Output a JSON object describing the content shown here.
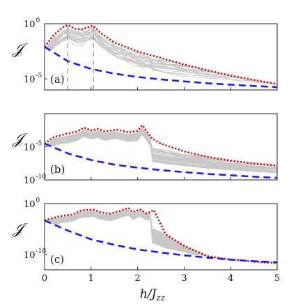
{
  "chart_data": [
    {
      "panel_label": "(a)",
      "type": "line",
      "ylabel": "𝒥",
      "yscale": "log",
      "ylim": [
        1e-06,
        1
      ],
      "xlim": [
        0,
        5
      ],
      "yticks": [
        {
          "exp": "0",
          "value": 1
        },
        {
          "exp": "-5",
          "value": 1e-05
        }
      ],
      "vertical_markers": [
        0.5,
        1.05
      ],
      "series": [
        {
          "role": "upper envelope",
          "color": "#e00000",
          "style": "dotted",
          "x": [
            0,
            0.2,
            0.4,
            0.5,
            0.65,
            0.8,
            1.0,
            1.05,
            1.2,
            1.5,
            2.0,
            2.5,
            3.0,
            3.5,
            4.0,
            4.5,
            5.0
          ],
          "y": [
            0.008,
            0.1,
            0.5,
            0.75,
            0.35,
            0.3,
            0.6,
            0.65,
            0.15,
            0.02,
            0.003,
            0.0008,
            0.0002,
            6e-05,
            2e-05,
            8e-06,
            3.5e-06
          ]
        },
        {
          "role": "lower bound",
          "color": "#1a1aff",
          "style": "dashed",
          "x": [
            0,
            0.5,
            1.0,
            1.5,
            2.0,
            2.5,
            3.0,
            3.5,
            4.0,
            4.5,
            5.0
          ],
          "y": [
            0.008,
            0.0004,
            8e-05,
            3e-05,
            1.5e-05,
            9e-06,
            6e-06,
            4e-06,
            3e-06,
            2.3e-06,
            1.8e-06
          ]
        }
      ]
    },
    {
      "panel_label": "(b)",
      "type": "line",
      "ylabel": "𝒥",
      "yscale": "log",
      "ylim": [
        1e-10,
        1
      ],
      "xlim": [
        0,
        5
      ],
      "yticks": [
        {
          "exp": "-5",
          "value": 1e-05
        },
        {
          "exp": "-10",
          "value": 1e-10
        }
      ],
      "series": [
        {
          "role": "upper envelope",
          "color": "#e00000",
          "style": "dotted",
          "x": [
            0,
            0.2,
            0.5,
            0.7,
            0.85,
            1.0,
            1.15,
            1.3,
            1.55,
            1.8,
            2.0,
            2.1,
            2.3,
            2.5,
            3.0,
            3.5,
            4.0,
            4.5,
            5.0
          ],
          "y": [
            3e-05,
            0.0003,
            0.001,
            0.002,
            0.008,
            0.003,
            0.005,
            0.002,
            0.004,
            0.0015,
            0.0025,
            0.02,
            0.0002,
            3e-05,
            2e-06,
            3e-07,
            8e-08,
            3e-08,
            1.5e-08
          ]
        },
        {
          "role": "lower bound",
          "color": "#1a1aff",
          "style": "dashed",
          "x": [
            0,
            0.5,
            1.0,
            1.5,
            2.0,
            2.5,
            3.0,
            3.5,
            4.0,
            4.5,
            5.0
          ],
          "y": [
            3e-05,
            1e-06,
            1e-07,
            2e-08,
            7e-09,
            3e-09,
            1.5e-09,
            8e-10,
            5e-10,
            3e-10,
            2e-10
          ]
        }
      ]
    },
    {
      "panel_label": "(c)",
      "type": "line",
      "ylabel": "𝒥",
      "yscale": "log",
      "ylim": [
        1e-13,
        1
      ],
      "xlim": [
        0,
        5
      ],
      "xlabel": "h/J",
      "xlabel_sub": "zz",
      "xticks": [
        0,
        1,
        2,
        3,
        4,
        5
      ],
      "yticks": [
        {
          "exp": "0",
          "value": 1
        },
        {
          "exp": "-10",
          "value": 1e-10
        }
      ],
      "series": [
        {
          "role": "upper envelope",
          "color": "#e00000",
          "style": "dotted",
          "x": [
            0,
            0.3,
            0.6,
            0.8,
            0.95,
            1.05,
            1.2,
            1.4,
            1.6,
            1.8,
            1.9,
            2.05,
            2.2,
            2.35,
            2.6,
            3.0,
            3.5,
            4.0,
            4.5,
            5.0
          ],
          "y": [
            0.0005,
            0.003,
            0.007,
            0.05,
            0.06,
            0.07,
            0.02,
            0.01,
            0.03,
            0.15,
            0.02,
            0.08,
            0.01,
            0.06,
            1e-06,
            5e-09,
            5e-11,
            1e-11,
            4e-12,
            2e-12
          ]
        },
        {
          "role": "lower bound",
          "color": "#1a1aff",
          "style": "dashed",
          "x": [
            0,
            0.5,
            1.0,
            1.5,
            2.0,
            2.5,
            3.0,
            3.5,
            4.0,
            4.5,
            5.0
          ],
          "y": [
            0.0005,
            5e-06,
            1e-07,
            8e-09,
            1e-09,
            2.5e-10,
            7e-11,
            2.5e-11,
            1e-11,
            5e-12,
            3e-12
          ]
        }
      ]
    }
  ]
}
